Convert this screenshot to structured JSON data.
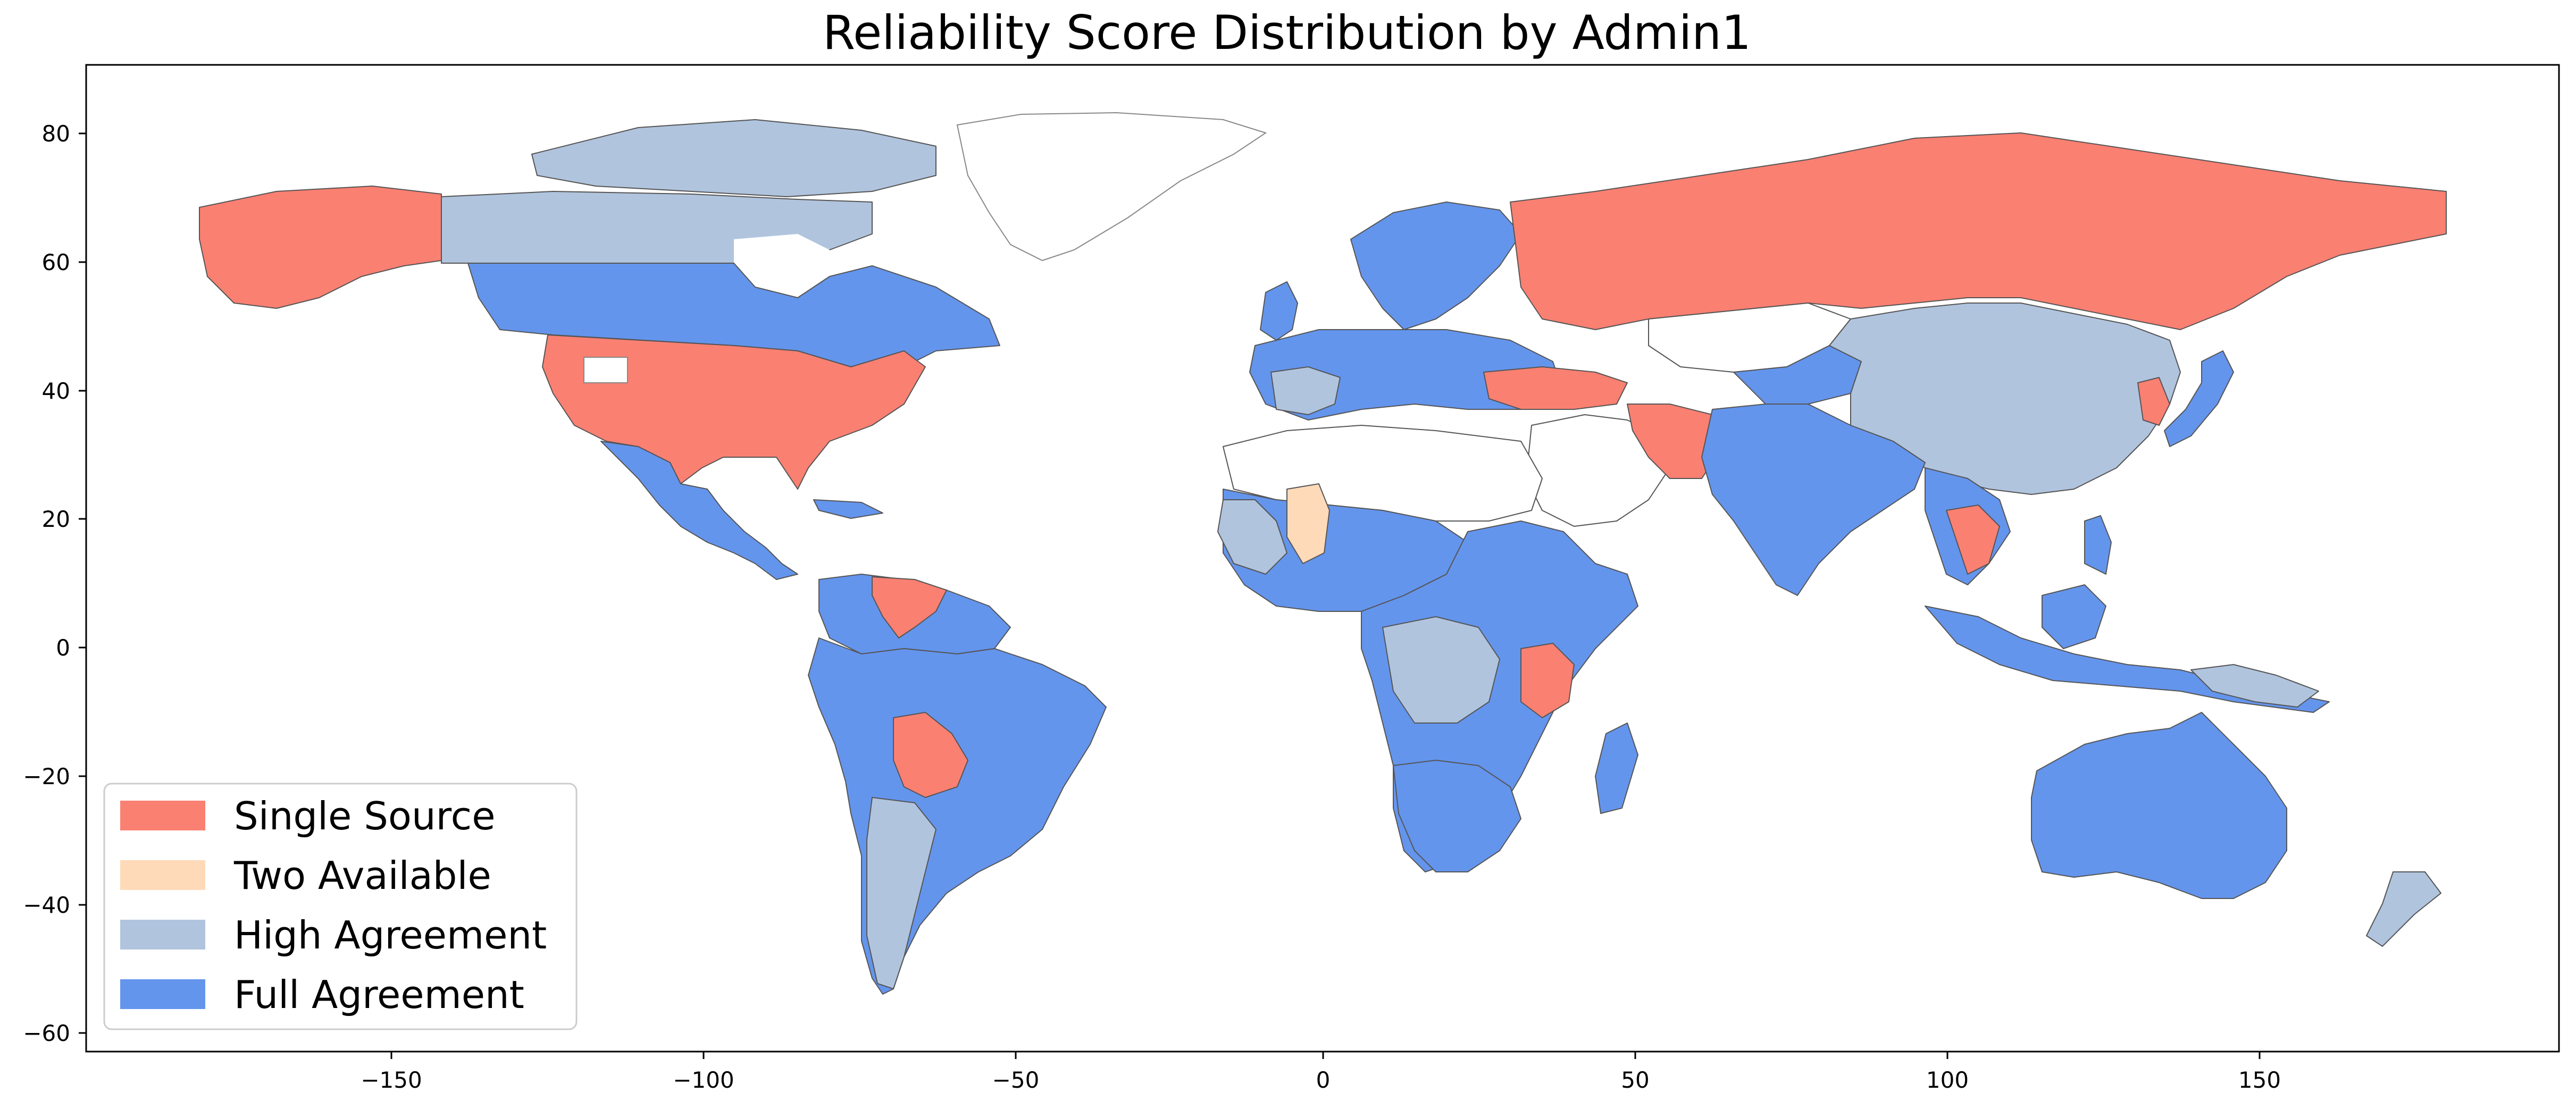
{
  "title": "Reliability Score Distribution by Admin1",
  "axes": {
    "x_ticks": [
      "−150",
      "−100",
      "−50",
      "0",
      "50",
      "100",
      "150"
    ],
    "y_ticks": [
      "80",
      "60",
      "40",
      "20",
      "0",
      "−20",
      "−40",
      "−60"
    ]
  },
  "legend": {
    "placement": "lower-left",
    "items": [
      {
        "label": "Single Source",
        "color": "#fa8072"
      },
      {
        "label": "Two Available",
        "color": "#ffdab9"
      },
      {
        "label": "High Agreement",
        "color": "#b0c4de"
      },
      {
        "label": "Full Agreement",
        "color": "#6495ed"
      }
    ]
  },
  "colors": {
    "single": "#fa8072",
    "two": "#ffdab9",
    "high": "#b0c4de",
    "full": "#6495ed",
    "border": "#555555"
  }
}
